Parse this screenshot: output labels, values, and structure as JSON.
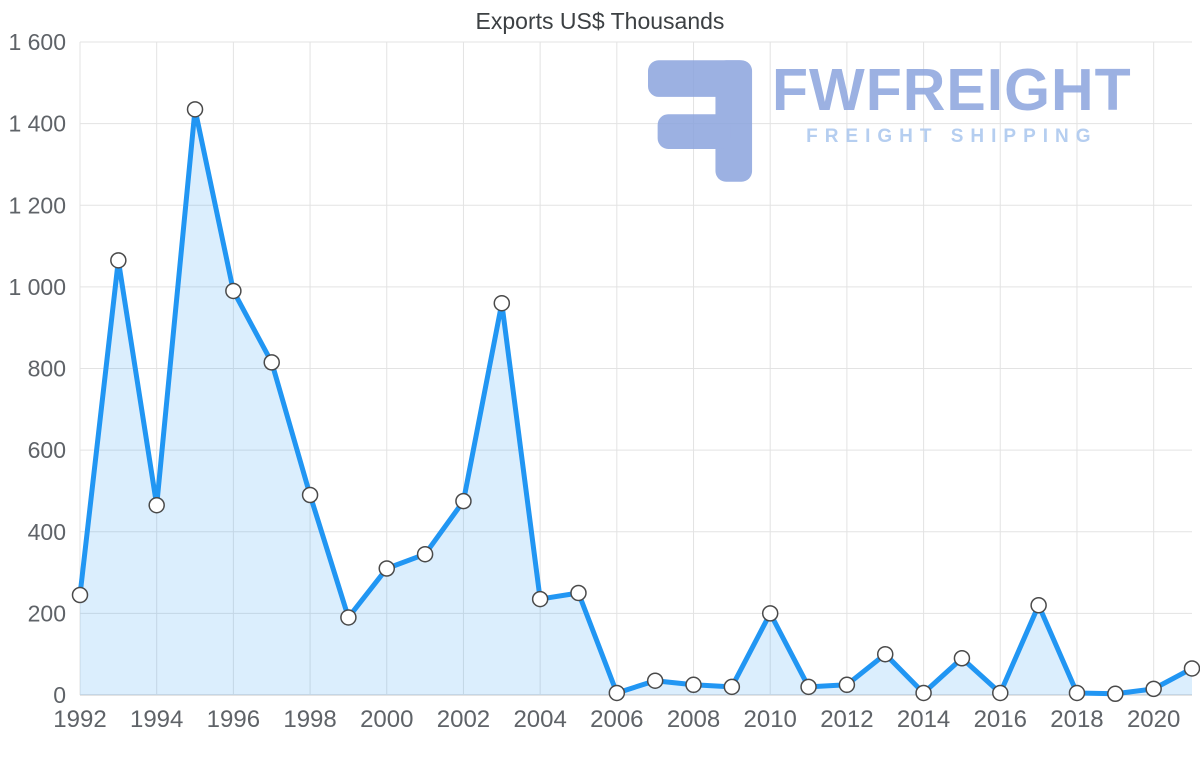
{
  "chart_data": {
    "type": "area",
    "title": "Exports US$ Thousands",
    "xlabel": "",
    "ylabel": "",
    "x": [
      1992,
      1993,
      1994,
      1995,
      1996,
      1997,
      1998,
      1999,
      2000,
      2001,
      2002,
      2003,
      2004,
      2005,
      2006,
      2007,
      2008,
      2009,
      2010,
      2011,
      2012,
      2013,
      2014,
      2015,
      2016,
      2017,
      2018,
      2019,
      2020,
      2021
    ],
    "values": [
      245,
      1065,
      465,
      1435,
      990,
      815,
      490,
      190,
      310,
      345,
      475,
      960,
      235,
      250,
      5,
      35,
      25,
      20,
      200,
      20,
      25,
      100,
      5,
      90,
      5,
      220,
      5,
      3,
      15,
      65
    ],
    "ylim": [
      0,
      1600
    ],
    "ytick_values": [
      0,
      200,
      400,
      600,
      800,
      1000,
      1200,
      1400,
      1600
    ],
    "ytick_labels": [
      "0",
      "200",
      "400",
      "600",
      "800",
      "1 000",
      "1 200",
      "1 400",
      "1 600"
    ],
    "xticks": [
      1992,
      1994,
      1996,
      1998,
      2000,
      2002,
      2004,
      2006,
      2008,
      2010,
      2012,
      2014,
      2016,
      2018,
      2020
    ],
    "grid": true,
    "legend": "none",
    "line_color": "#2196f3",
    "fill_color": "rgba(33,150,243,0.16)",
    "marker_fill": "#ffffff",
    "marker_stroke": "#4a4a4a",
    "grid_color": "#e3e3e3",
    "axis_line_color": "#c7c7c7",
    "tick_text_color": "#5f6368"
  },
  "watermark": {
    "name": "FWFREIGHT",
    "subtitle": "FREIGHT SHIPPING",
    "text_color": "#8ba4de",
    "subtitle_color": "#a9c6ee",
    "logo_color": "#8ba4de"
  }
}
